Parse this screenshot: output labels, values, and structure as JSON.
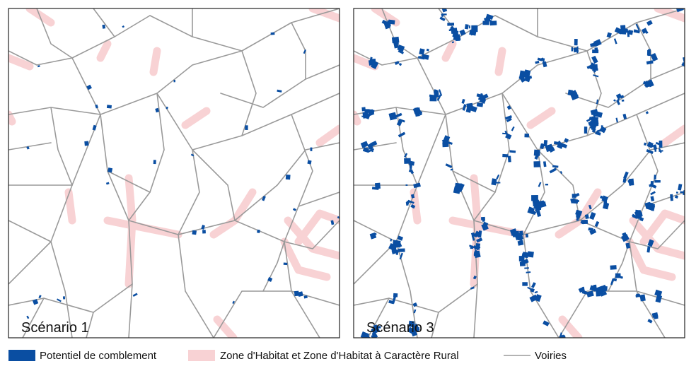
{
  "panels": [
    {
      "label": "Scénario 1"
    },
    {
      "label": "Scénario 3"
    }
  ],
  "legend": [
    {
      "label": "Potentiel de comblement"
    },
    {
      "label": "Zone d'Habitat et Zone d'Habitat à Caractère Rural"
    },
    {
      "label": "Voiries"
    }
  ]
}
